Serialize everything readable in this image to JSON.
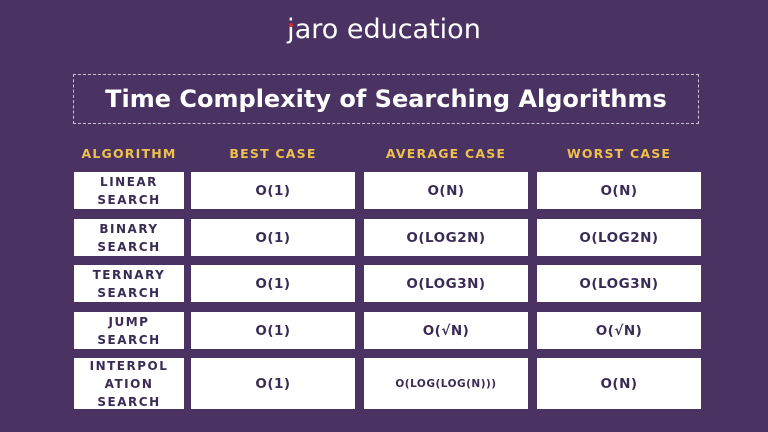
{
  "logo": {
    "text_j": "j",
    "text_rest": "aro education"
  },
  "title": "Time Complexity of Searching Algorithms",
  "headers": [
    "ALGORITHM",
    "BEST CASE",
    "AVERAGE CASE",
    "WORST CASE"
  ],
  "rows": [
    {
      "algorithm": "LINEAR\nSEARCH",
      "best": "O(1)",
      "average": "O(N)",
      "worst": "O(N)"
    },
    {
      "algorithm": "BINARY\nSEARCH",
      "best": "O(1)",
      "average": "O(LOG2N)",
      "worst": "O(LOG2N)"
    },
    {
      "algorithm": "TERNARY\nSEARCH",
      "best": "O(1)",
      "average": "O(LOG3N)",
      "worst": "O(LOG3N)"
    },
    {
      "algorithm": "JUMP\nSEARCH",
      "best": "O(1)",
      "average": "O(√N)",
      "worst": "O(√N)"
    },
    {
      "algorithm": "INTERPOL\nATION\nSEARCH",
      "best": "O(1)",
      "average": "O(LOG(LOG(N)))",
      "worst": "O(N)"
    }
  ],
  "colors": {
    "background": "#4a3262",
    "header": "#f0c04d",
    "cell_text": "#3a2b55",
    "logo_dot": "#e0262b"
  }
}
